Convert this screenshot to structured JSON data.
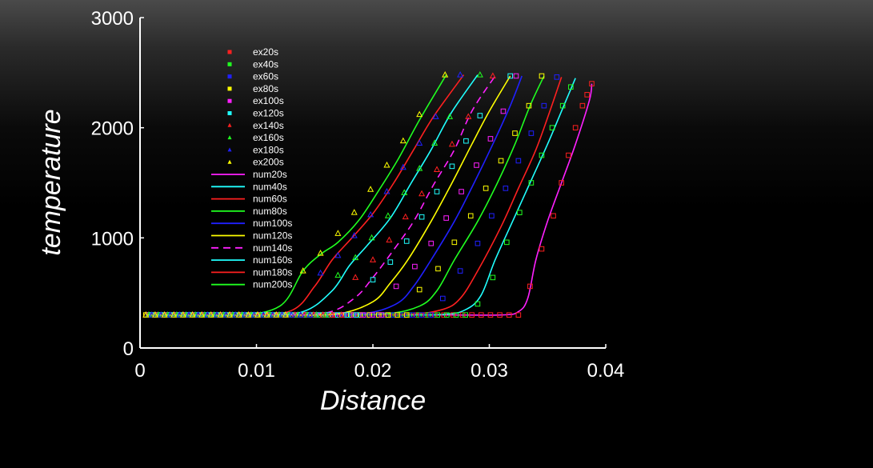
{
  "chart_data": {
    "type": "line",
    "xlabel": "Distance",
    "ylabel": "temperature",
    "xlim": [
      0,
      0.04
    ],
    "ylim": [
      0,
      3000
    ],
    "x_ticks": [
      "0",
      "0.01",
      "0.02",
      "0.03",
      "0.04"
    ],
    "y_ticks": [
      "0",
      "1000",
      "2000",
      "3000"
    ],
    "grid": false,
    "legend_position": "upper-left inside plot",
    "base_temperature": 300,
    "experimental_series": [
      {
        "name": "ex20s",
        "color": "#ff2020",
        "marker": "square",
        "x": [
          0.0335,
          0.0345,
          0.0355,
          0.0362,
          0.0368,
          0.0374,
          0.038,
          0.0384,
          0.0388
        ],
        "y": [
          560,
          900,
          1200,
          1500,
          1750,
          2000,
          2200,
          2300,
          2400
        ]
      },
      {
        "name": "ex40s",
        "color": "#20ff20",
        "marker": "square",
        "x": [
          0.029,
          0.0303,
          0.0315,
          0.0326,
          0.0336,
          0.0345,
          0.0354,
          0.0363,
          0.037
        ],
        "y": [
          400,
          640,
          960,
          1230,
          1500,
          1750,
          2000,
          2200,
          2370
        ]
      },
      {
        "name": "ex60s",
        "color": "#2020ff",
        "marker": "square",
        "x": [
          0.026,
          0.0275,
          0.029,
          0.0302,
          0.0314,
          0.0325,
          0.0336,
          0.0347,
          0.0358
        ],
        "y": [
          450,
          700,
          950,
          1200,
          1450,
          1700,
          1950,
          2200,
          2460
        ]
      },
      {
        "name": "ex80s",
        "color": "#ffff00",
        "marker": "square",
        "x": [
          0.024,
          0.0256,
          0.027,
          0.0284,
          0.0297,
          0.031,
          0.0322,
          0.0334,
          0.0345
        ],
        "y": [
          530,
          720,
          960,
          1200,
          1450,
          1700,
          1950,
          2200,
          2470
        ]
      },
      {
        "name": "ex100s",
        "color": "#ff20ff",
        "marker": "square",
        "x": [
          0.022,
          0.0236,
          0.025,
          0.0263,
          0.0276,
          0.0289,
          0.0301,
          0.0312,
          0.0323
        ],
        "y": [
          560,
          740,
          950,
          1180,
          1420,
          1660,
          1900,
          2150,
          2470
        ]
      },
      {
        "name": "ex120s",
        "color": "#20ffff",
        "marker": "square",
        "x": [
          0.02,
          0.0215,
          0.0229,
          0.0242,
          0.0255,
          0.0268,
          0.028,
          0.0292,
          0.0318
        ],
        "y": [
          620,
          780,
          970,
          1190,
          1420,
          1650,
          1880,
          2110,
          2470
        ]
      },
      {
        "name": "ex140s",
        "color": "#ff2020",
        "marker": "triangle",
        "x": [
          0.0185,
          0.02,
          0.0214,
          0.0228,
          0.0242,
          0.0255,
          0.0268,
          0.0282,
          0.0303
        ],
        "y": [
          640,
          800,
          980,
          1190,
          1400,
          1620,
          1850,
          2100,
          2470
        ]
      },
      {
        "name": "ex160s",
        "color": "#20ff20",
        "marker": "triangle",
        "x": [
          0.017,
          0.0185,
          0.0199,
          0.0213,
          0.0227,
          0.024,
          0.0253,
          0.0266,
          0.0292
        ],
        "y": [
          660,
          820,
          1000,
          1200,
          1410,
          1630,
          1860,
          2100,
          2480
        ]
      },
      {
        "name": "ex180s",
        "color": "#2020ff",
        "marker": "triangle",
        "x": [
          0.0155,
          0.017,
          0.0184,
          0.0198,
          0.0212,
          0.0226,
          0.024,
          0.0254,
          0.0275
        ],
        "y": [
          680,
          840,
          1020,
          1210,
          1420,
          1640,
          1860,
          2100,
          2480
        ]
      },
      {
        "name": "ex200s",
        "color": "#ffff00",
        "marker": "triangle",
        "x": [
          0.014,
          0.0155,
          0.017,
          0.0184,
          0.0198,
          0.0212,
          0.0226,
          0.024,
          0.0262
        ],
        "y": [
          700,
          860,
          1040,
          1230,
          1440,
          1660,
          1880,
          2120,
          2480
        ]
      }
    ],
    "numerical_series": [
      {
        "name": "num20s",
        "color": "#ff20ff",
        "dash": "solid",
        "x": [
          0.0005,
          0.025,
          0.031,
          0.0325,
          0.0333,
          0.034,
          0.035,
          0.0362,
          0.0374,
          0.0386,
          0.0388
        ],
        "y": [
          300,
          300,
          300,
          330,
          450,
          800,
          1150,
          1500,
          1850,
          2250,
          2400
        ]
      },
      {
        "name": "num40s",
        "color": "#20ffff",
        "dash": "solid",
        "x": [
          0.0005,
          0.02,
          0.026,
          0.028,
          0.0293,
          0.0305,
          0.032,
          0.0335,
          0.035,
          0.0362,
          0.0374
        ],
        "y": [
          300,
          300,
          305,
          350,
          480,
          800,
          1150,
          1500,
          1850,
          2150,
          2450
        ]
      },
      {
        "name": "num60s",
        "color": "#ff2020",
        "dash": "solid",
        "x": [
          0.0005,
          0.017,
          0.023,
          0.026,
          0.0275,
          0.029,
          0.031,
          0.0325,
          0.034,
          0.0352,
          0.0362
        ],
        "y": [
          300,
          300,
          305,
          350,
          450,
          700,
          1100,
          1450,
          1800,
          2150,
          2460
        ]
      },
      {
        "name": "num80s",
        "color": "#20ff20",
        "dash": "solid",
        "x": [
          0.0005,
          0.015,
          0.021,
          0.024,
          0.0255,
          0.027,
          0.029,
          0.0307,
          0.0322,
          0.0335,
          0.0347
        ],
        "y": [
          300,
          300,
          310,
          380,
          520,
          800,
          1150,
          1500,
          1850,
          2200,
          2470
        ]
      },
      {
        "name": "num100s",
        "color": "#2020ff",
        "dash": "solid",
        "x": [
          0.0005,
          0.013,
          0.019,
          0.022,
          0.0235,
          0.025,
          0.027,
          0.0287,
          0.0303,
          0.0318,
          0.0328
        ],
        "y": [
          300,
          300,
          310,
          400,
          560,
          800,
          1150,
          1500,
          1850,
          2200,
          2470
        ]
      },
      {
        "name": "num120s",
        "color": "#ffff00",
        "dash": "solid",
        "x": [
          0.0005,
          0.012,
          0.017,
          0.02,
          0.0215,
          0.023,
          0.025,
          0.0268,
          0.0285,
          0.03,
          0.0318
        ],
        "y": [
          300,
          300,
          310,
          420,
          590,
          800,
          1150,
          1500,
          1850,
          2150,
          2470
        ]
      },
      {
        "name": "num140s",
        "color": "#ff20ff",
        "dash": "dashed",
        "x": [
          0.0005,
          0.011,
          0.016,
          0.0185,
          0.02,
          0.0215,
          0.0235,
          0.0252,
          0.027,
          0.0285,
          0.0305
        ],
        "y": [
          300,
          300,
          320,
          460,
          640,
          850,
          1150,
          1480,
          1800,
          2150,
          2470
        ]
      },
      {
        "name": "num160s",
        "color": "#20ffff",
        "dash": "solid",
        "x": [
          0.0005,
          0.01,
          0.014,
          0.0165,
          0.018,
          0.0195,
          0.0215,
          0.0233,
          0.025,
          0.0267,
          0.029
        ],
        "y": [
          300,
          300,
          330,
          520,
          750,
          930,
          1180,
          1500,
          1800,
          2130,
          2480
        ]
      },
      {
        "name": "num180s",
        "color": "#ff2020",
        "dash": "solid",
        "x": [
          0.0005,
          0.009,
          0.013,
          0.015,
          0.0165,
          0.0182,
          0.02,
          0.0218,
          0.0235,
          0.0252,
          0.0278
        ],
        "y": [
          300,
          300,
          340,
          560,
          800,
          1000,
          1220,
          1500,
          1800,
          2100,
          2480
        ]
      },
      {
        "name": "num200s",
        "color": "#20ff20",
        "dash": "solid",
        "x": [
          0.0005,
          0.008,
          0.012,
          0.014,
          0.0155,
          0.017,
          0.0188,
          0.0205,
          0.0222,
          0.024,
          0.0263
        ],
        "y": [
          300,
          300,
          380,
          700,
          850,
          960,
          1160,
          1430,
          1720,
          2070,
          2480
        ]
      }
    ]
  }
}
